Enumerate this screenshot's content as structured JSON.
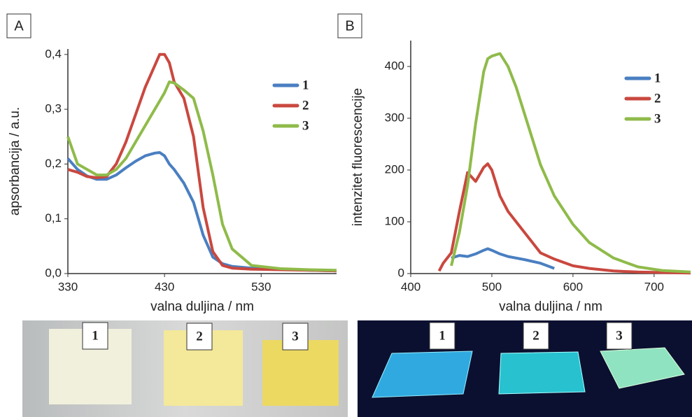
{
  "chart_data": [
    {
      "type": "line",
      "panel": "A",
      "x_label": "valna duljina / nm",
      "y_label": "apsorbancija / a.u.",
      "x": [
        330,
        340,
        350,
        360,
        370,
        380,
        390,
        400,
        410,
        420,
        425,
        430,
        435,
        440,
        450,
        460,
        470,
        480,
        490,
        500,
        520,
        550,
        580,
        608
      ],
      "series": [
        {
          "name": "1",
          "color": "#4a7fc1",
          "values": [
            0.21,
            0.19,
            0.178,
            0.172,
            0.172,
            0.18,
            0.193,
            0.205,
            0.215,
            0.22,
            0.221,
            0.215,
            0.2,
            0.19,
            0.165,
            0.13,
            0.07,
            0.03,
            0.018,
            0.013,
            0.01,
            0.008,
            0.006,
            0.005
          ]
        },
        {
          "name": "2",
          "color": "#c9483f",
          "values": [
            0.19,
            0.185,
            0.177,
            0.175,
            0.177,
            0.2,
            0.24,
            0.29,
            0.34,
            0.38,
            0.4,
            0.4,
            0.385,
            0.35,
            0.32,
            0.25,
            0.12,
            0.04,
            0.015,
            0.01,
            0.008,
            0.007,
            0.006,
            0.005
          ]
        },
        {
          "name": "3",
          "color": "#8fbb4a",
          "values": [
            0.25,
            0.2,
            0.19,
            0.18,
            0.18,
            0.19,
            0.21,
            0.24,
            0.27,
            0.3,
            0.315,
            0.33,
            0.35,
            0.348,
            0.335,
            0.32,
            0.26,
            0.18,
            0.09,
            0.045,
            0.015,
            0.009,
            0.007,
            0.006
          ]
        }
      ],
      "xlim": [
        330,
        608
      ],
      "ylim": [
        0,
        0.41
      ],
      "xticks": [
        330,
        430,
        530
      ],
      "yticks": [
        {
          "value": 0,
          "label": "0,0"
        },
        {
          "value": 0.1,
          "label": "0,1"
        },
        {
          "value": 0.2,
          "label": "0,2"
        },
        {
          "value": 0.3,
          "label": "0,3"
        },
        {
          "value": 0.4,
          "label": "0,4"
        }
      ],
      "legend": "upper right"
    },
    {
      "type": "line",
      "panel": "B",
      "x_label": "valna duljina / nm",
      "y_label": "intenzitet fluorescencije",
      "x": [
        435,
        440,
        450,
        460,
        470,
        480,
        490,
        495,
        500,
        510,
        520,
        530,
        540,
        560,
        577,
        600,
        620,
        650,
        680,
        710,
        745
      ],
      "series": [
        {
          "name": "1",
          "color": "#4a7fc1",
          "values": [
            null,
            null,
            30,
            35,
            33,
            38,
            45,
            48,
            45,
            38,
            33,
            30,
            27,
            20,
            10,
            null,
            null,
            null,
            null,
            null,
            null
          ]
        },
        {
          "name": "2",
          "color": "#c9483f",
          "values": [
            5,
            20,
            40,
            120,
            195,
            178,
            205,
            212,
            200,
            150,
            120,
            100,
            80,
            40,
            28,
            15,
            10,
            5,
            3,
            2,
            1
          ]
        },
        {
          "name": "3",
          "color": "#8fbb4a",
          "values": [
            null,
            null,
            15,
            80,
            170,
            290,
            390,
            415,
            420,
            425,
            400,
            360,
            310,
            210,
            150,
            95,
            60,
            30,
            13,
            6,
            3
          ]
        }
      ],
      "xlim": [
        400,
        745
      ],
      "ylim": [
        0,
        450
      ],
      "xticks": [
        400,
        500,
        600,
        700
      ],
      "yticks": [
        0,
        100,
        200,
        300,
        400
      ],
      "legend": "upper right"
    }
  ],
  "photos": [
    {
      "labels": [
        "1",
        "2",
        "3"
      ]
    },
    {
      "labels": [
        "1",
        "2",
        "3"
      ]
    }
  ]
}
